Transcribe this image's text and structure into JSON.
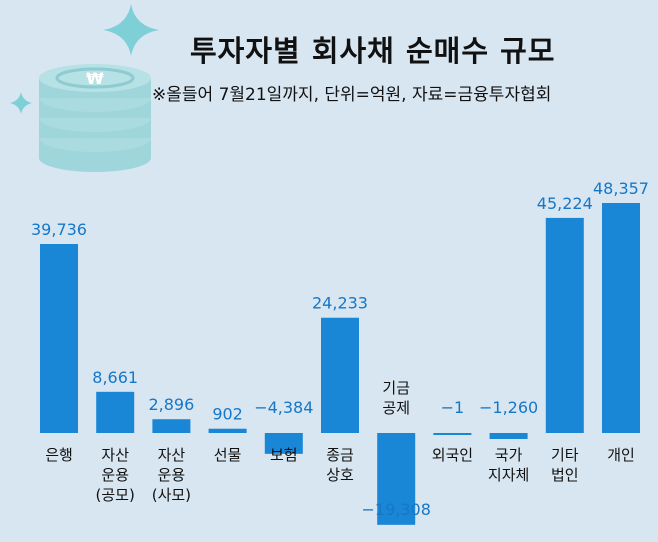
{
  "header": {
    "title": "투자자별 회사채 순매수 규모",
    "subtitle": "※올들어 7월21일까지, 단위=억원, 자료=금융투자협회"
  },
  "colors": {
    "background": "#d8e6f1",
    "bar": "#1a86d6",
    "value_label": "#1677c8",
    "category_label": "#111111",
    "decoration": "#7fd0d6"
  },
  "decoration": {
    "coin_icon": "won-coin-stack-icon",
    "sparkle_icon": "sparkle-icon"
  },
  "chart_data": {
    "type": "bar",
    "title": "투자자별 회사채 순매수 규모",
    "subtitle": "※올들어 7월21일까지, 단위=억원, 자료=금융투자협회",
    "unit": "억원",
    "xlabel": "",
    "ylabel": "",
    "ylim": [
      -19308,
      48357
    ],
    "categories": [
      {
        "label": [
          "은행"
        ]
      },
      {
        "label": [
          "자산",
          "운용",
          "(공모)"
        ]
      },
      {
        "label": [
          "자산",
          "운용",
          "(사모)"
        ]
      },
      {
        "label": [
          "선물"
        ]
      },
      {
        "label": [
          "보험"
        ]
      },
      {
        "label": [
          "종금",
          "상호"
        ]
      },
      {
        "label": [
          "기금",
          "공제"
        ]
      },
      {
        "label": [
          "외국인"
        ]
      },
      {
        "label": [
          "국가",
          "지자체"
        ]
      },
      {
        "label": [
          "기타",
          "법인"
        ]
      },
      {
        "label": [
          "개인"
        ]
      }
    ],
    "values": [
      39736,
      8661,
      2896,
      902,
      -4384,
      24233,
      -19308,
      -1,
      -1260,
      45224,
      48357
    ],
    "value_labels": [
      "39,736",
      "8,661",
      "2,896",
      "902",
      "−4,384",
      "24,233",
      "−19,308",
      "−1",
      "−1,260",
      "45,224",
      "48,357"
    ]
  }
}
